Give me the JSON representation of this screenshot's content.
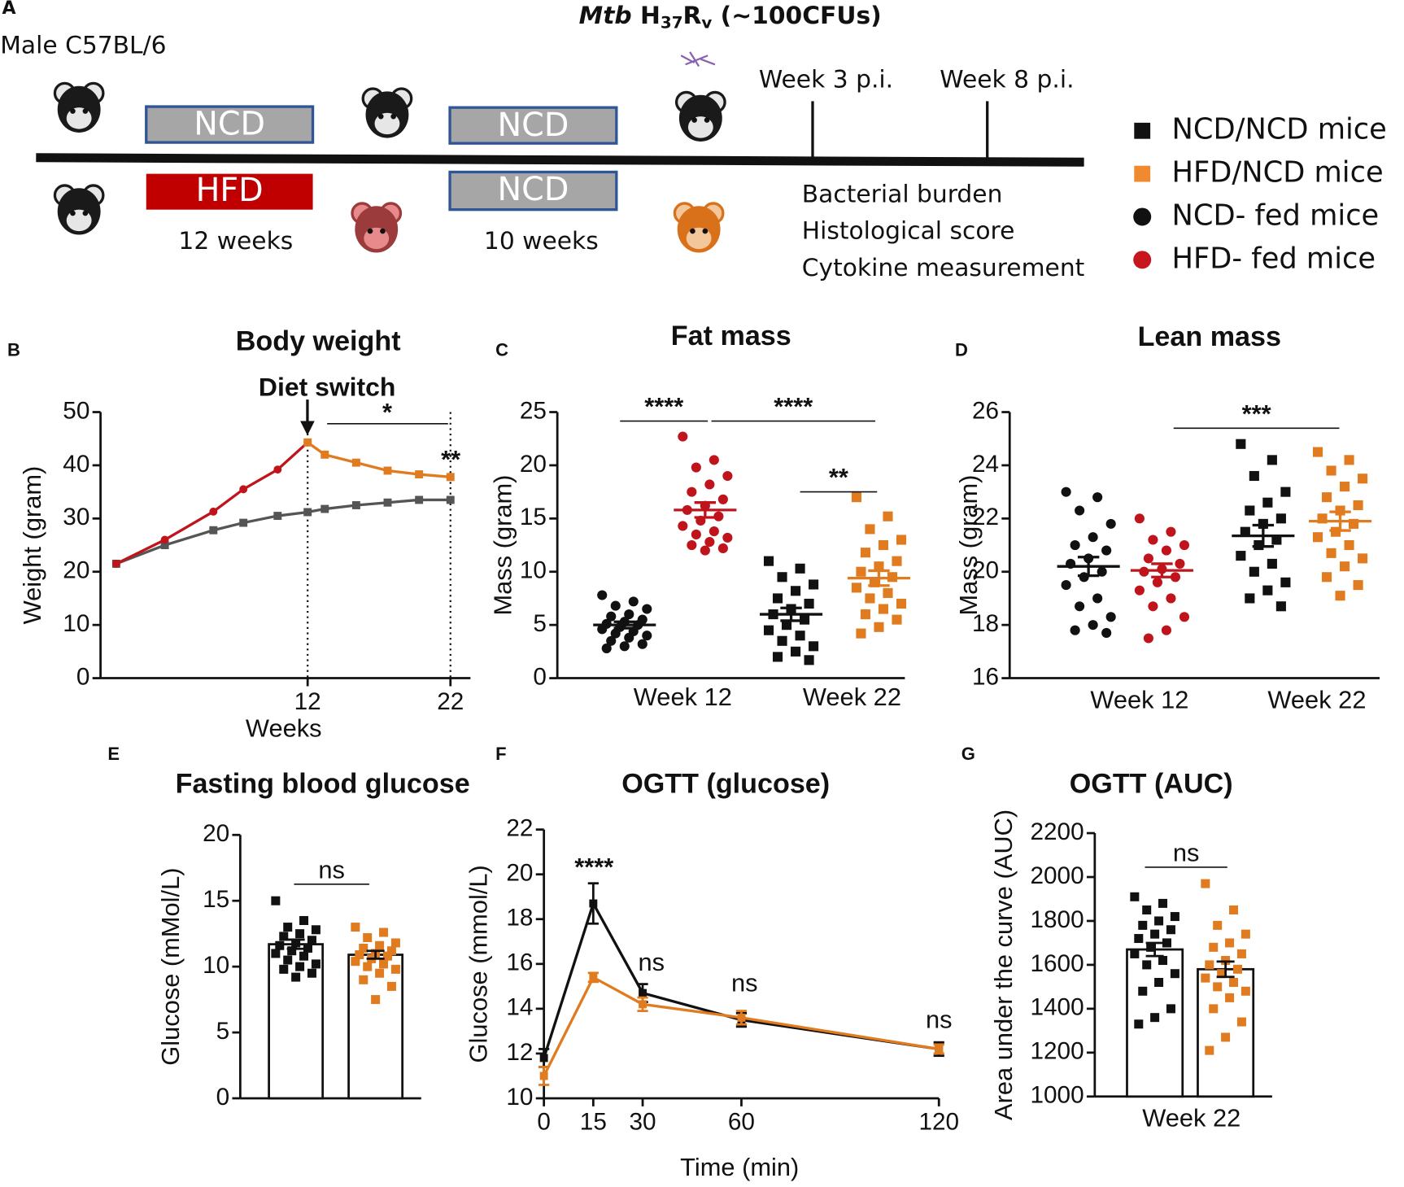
{
  "schematic": {
    "panel": "A",
    "strain": "Male C57BL/6",
    "infection": {
      "organism": "Mtb",
      "h": "H",
      "h_sub": "37",
      "r": "R",
      "r_sub": "v",
      "dose": "(~100CFUs)"
    },
    "top_boxes": [
      "NCD",
      "NCD"
    ],
    "bottom_boxes": [
      "HFD",
      "NCD"
    ],
    "durations": [
      "12 weeks",
      "10 weeks"
    ],
    "timepoints": [
      "Week 3 p.i.",
      "Week 8 p.i."
    ],
    "readouts": [
      "Bacterial burden",
      "Histological score",
      "Cytokine measurement"
    ],
    "legend": [
      {
        "label": "NCD/NCD mice",
        "color": "#111111",
        "marker": "square"
      },
      {
        "label": "HFD/NCD mice",
        "color": "#f08a30",
        "marker": "square"
      },
      {
        "label": "NCD- fed mice",
        "color": "#111111",
        "marker": "circle"
      },
      {
        "label": "HFD- fed mice",
        "color": "#c8161d",
        "marker": "circle"
      }
    ]
  },
  "chart_data": [
    {
      "panel": "B",
      "type": "line",
      "title": "Body weight",
      "xlabel": "Weeks",
      "ylabel": "Weight (gram)",
      "xlim": [
        -2.5,
        23.4
      ],
      "xticks": [
        12,
        22
      ],
      "ylim": [
        0,
        50
      ],
      "yticks": [
        0,
        10,
        20,
        30,
        40,
        50
      ],
      "vlines": [
        12,
        22
      ],
      "series": [
        {
          "color": "#555555",
          "marker": "square",
          "x": [
            -1.4,
            2,
            5.4,
            7.5,
            9.9,
            12,
            13.2,
            15.4,
            17.6,
            19.8,
            22
          ],
          "values": [
            21.5,
            25,
            27.8,
            29.2,
            30.5,
            31.2,
            31.8,
            32.5,
            33,
            33.5,
            33.5
          ]
        },
        {
          "color": "#c0141c",
          "marker": "circle",
          "x": [
            -1.4,
            2,
            5.4,
            7.5,
            9.9,
            12
          ],
          "values": [
            21.5,
            26,
            31.3,
            35.5,
            39.2,
            44.3
          ]
        },
        {
          "color": "#e07b20",
          "marker": "square",
          "x": [
            12,
            13.2,
            15.4,
            17.6,
            19.8,
            22
          ],
          "values": [
            44.3,
            42,
            40.5,
            39,
            38.3,
            37.8
          ]
        }
      ],
      "annotations": [
        "Diet switch",
        "*",
        "**"
      ]
    },
    {
      "panel": "C",
      "type": "strip",
      "title": "Fat mass",
      "ylabel": "Mass (gram)",
      "categories": [
        "Week 12",
        "Week 22"
      ],
      "ylim": [
        0,
        25
      ],
      "yticks": [
        0,
        5,
        10,
        15,
        20,
        25
      ],
      "groups": [
        {
          "color": "#111111",
          "marker": "circle",
          "values": [
            7.8,
            7.2,
            6.8,
            6.5,
            6.0,
            5.8,
            5.5,
            5.3,
            5.1,
            5.0,
            4.8,
            4.6,
            4.4,
            4.2,
            4.0,
            3.8,
            3.5,
            3.2,
            3.0,
            2.8
          ],
          "mean": 5.0,
          "sem": 0.3
        },
        {
          "color": "#c0141c",
          "marker": "circle",
          "values": [
            22.7,
            20.5,
            19.8,
            19.0,
            18.2,
            17.5,
            16.8,
            16.2,
            15.8,
            15.2,
            14.8,
            14.3,
            13.8,
            13.5,
            13.2,
            12.8,
            12.5,
            12.2,
            12.0
          ],
          "mean": 15.8,
          "sem": 0.7
        },
        {
          "color": "#111111",
          "marker": "square",
          "values": [
            11.0,
            10.3,
            9.5,
            8.8,
            8.2,
            7.5,
            7.0,
            6.5,
            6.0,
            5.5,
            5.0,
            4.5,
            4.0,
            3.5,
            3.0,
            2.5,
            2.0,
            1.7
          ],
          "mean": 6.0,
          "sem": 0.6
        },
        {
          "color": "#e07b20",
          "marker": "square",
          "values": [
            17.0,
            15.2,
            14.0,
            13.0,
            12.5,
            11.8,
            11.0,
            10.5,
            10.0,
            9.5,
            9.0,
            8.5,
            8.0,
            7.5,
            7.0,
            6.5,
            6.0,
            5.5,
            4.8,
            4.2
          ],
          "mean": 9.4,
          "sem": 0.7
        }
      ],
      "annotations": [
        "****",
        "****",
        "**"
      ]
    },
    {
      "panel": "D",
      "type": "strip",
      "title": "Lean mass",
      "ylabel": "Mass (gram)",
      "categories": [
        "Week 12",
        "Week 22"
      ],
      "ylim": [
        16,
        26
      ],
      "yticks": [
        16,
        18,
        20,
        22,
        24,
        26
      ],
      "groups": [
        {
          "color": "#111111",
          "marker": "circle",
          "values": [
            23.0,
            22.8,
            22.3,
            21.8,
            21.3,
            21.0,
            20.8,
            20.5,
            20.3,
            20.0,
            19.8,
            19.5,
            19.0,
            18.7,
            18.3,
            18.0,
            17.8,
            17.7
          ],
          "mean": 20.2,
          "sem": 0.35
        },
        {
          "color": "#c0141c",
          "marker": "circle",
          "values": [
            22.0,
            21.5,
            21.2,
            21.0,
            20.8,
            20.5,
            20.3,
            20.1,
            20.0,
            19.8,
            19.6,
            19.3,
            19.0,
            18.7,
            18.3,
            17.8,
            17.5
          ],
          "mean": 20.05,
          "sem": 0.25
        },
        {
          "color": "#111111",
          "marker": "square",
          "values": [
            24.8,
            24.2,
            23.6,
            23.0,
            22.6,
            22.3,
            22.0,
            21.8,
            21.5,
            21.2,
            21.0,
            20.6,
            20.3,
            20.0,
            19.6,
            19.3,
            19.0,
            18.7
          ],
          "mean": 21.35,
          "sem": 0.4
        },
        {
          "color": "#e07b20",
          "marker": "square",
          "values": [
            24.5,
            24.2,
            23.8,
            23.5,
            23.2,
            22.8,
            22.5,
            22.3,
            22.0,
            21.8,
            21.5,
            21.3,
            21.0,
            20.7,
            20.5,
            20.2,
            19.8,
            19.5,
            19.1
          ],
          "mean": 21.9,
          "sem": 0.35
        }
      ],
      "annotations": [
        "***"
      ]
    },
    {
      "panel": "E",
      "type": "barstrip",
      "title": "Fasting blood glucose",
      "ylabel": "Glucose (mMol/L)",
      "ylim": [
        0,
        20
      ],
      "yticks": [
        0,
        5,
        10,
        15,
        20
      ],
      "groups": [
        {
          "color": "#111111",
          "marker": "square",
          "values": [
            15.0,
            13.5,
            13.0,
            12.8,
            12.5,
            12.3,
            12.0,
            11.8,
            11.6,
            11.4,
            11.2,
            11.0,
            10.8,
            10.5,
            10.2,
            10.0,
            9.8,
            9.5,
            9.2
          ],
          "mean": 11.7,
          "sem": 0.35
        },
        {
          "color": "#e07b20",
          "marker": "square",
          "values": [
            13.0,
            12.6,
            12.2,
            11.8,
            11.6,
            11.4,
            11.2,
            11.0,
            10.9,
            10.8,
            10.6,
            10.4,
            10.2,
            10.0,
            9.8,
            9.5,
            9.0,
            8.5,
            7.5
          ],
          "mean": 10.9,
          "sem": 0.3
        }
      ],
      "annotations": [
        "ns"
      ]
    },
    {
      "panel": "F",
      "type": "errorline",
      "title": "OGTT (glucose)",
      "xlabel": "Time (min)",
      "ylabel": "Glucose (mmol/L)",
      "xlim": [
        0,
        120
      ],
      "xticks": [
        0,
        15,
        30,
        60,
        120
      ],
      "ylim": [
        10,
        22
      ],
      "yticks": [
        10,
        12,
        14,
        16,
        18,
        20,
        22
      ],
      "series": [
        {
          "color": "#111111",
          "x": [
            0,
            15,
            30,
            60,
            120
          ],
          "values": [
            11.8,
            18.7,
            14.7,
            13.5,
            12.2
          ],
          "errors": [
            0.4,
            0.9,
            0.4,
            0.3,
            0.3
          ]
        },
        {
          "color": "#e07b20",
          "x": [
            0,
            15,
            30,
            60,
            120
          ],
          "values": [
            11.0,
            15.4,
            14.2,
            13.6,
            12.2
          ],
          "errors": [
            0.4,
            0.2,
            0.3,
            0.3,
            0.2
          ]
        }
      ],
      "annotations": [
        "****",
        "ns",
        "ns",
        "ns"
      ]
    },
    {
      "panel": "G",
      "type": "barstrip",
      "title": "OGTT (AUC)",
      "ylabel": "Area under the curve  (AUC)",
      "categories": [
        "Week 22"
      ],
      "ylim": [
        1000,
        2200
      ],
      "yticks": [
        1000,
        1200,
        1400,
        1600,
        1800,
        2000,
        2200
      ],
      "groups": [
        {
          "color": "#111111",
          "marker": "square",
          "values": [
            1910,
            1880,
            1850,
            1820,
            1800,
            1780,
            1760,
            1740,
            1720,
            1700,
            1680,
            1650,
            1620,
            1600,
            1560,
            1520,
            1480,
            1400,
            1360,
            1330
          ],
          "mean": 1670,
          "sem": 30
        },
        {
          "color": "#e07b20",
          "marker": "square",
          "values": [
            1970,
            1850,
            1780,
            1740,
            1700,
            1680,
            1650,
            1620,
            1600,
            1580,
            1560,
            1540,
            1520,
            1500,
            1480,
            1450,
            1400,
            1340,
            1270,
            1210
          ],
          "mean": 1580,
          "sem": 35
        }
      ],
      "annotations": [
        "ns"
      ]
    }
  ]
}
